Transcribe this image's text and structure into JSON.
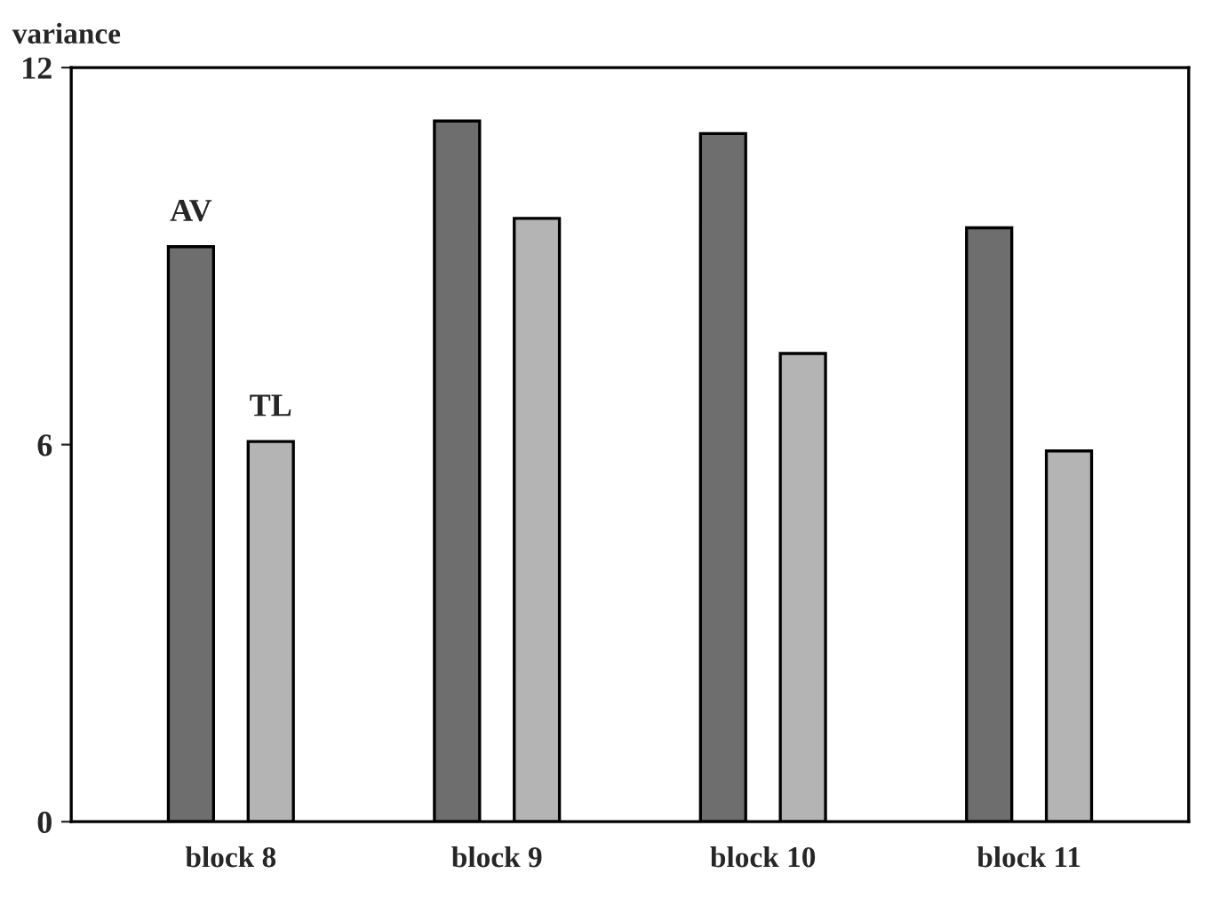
{
  "chart_data": {
    "type": "bar",
    "ylabel": "variance",
    "categories": [
      "block 8",
      "block 9",
      "block 10",
      "block 11"
    ],
    "series": [
      {
        "name": "AV",
        "color": "#6e6e6e",
        "values": [
          9.15,
          11.15,
          10.95,
          9.45
        ]
      },
      {
        "name": "TL",
        "color": "#b4b4b4",
        "values": [
          6.05,
          9.6,
          7.45,
          5.9
        ]
      }
    ],
    "ylim": [
      0,
      12
    ],
    "yticks": [
      0,
      6,
      12
    ],
    "grid": false,
    "legend": false
  }
}
